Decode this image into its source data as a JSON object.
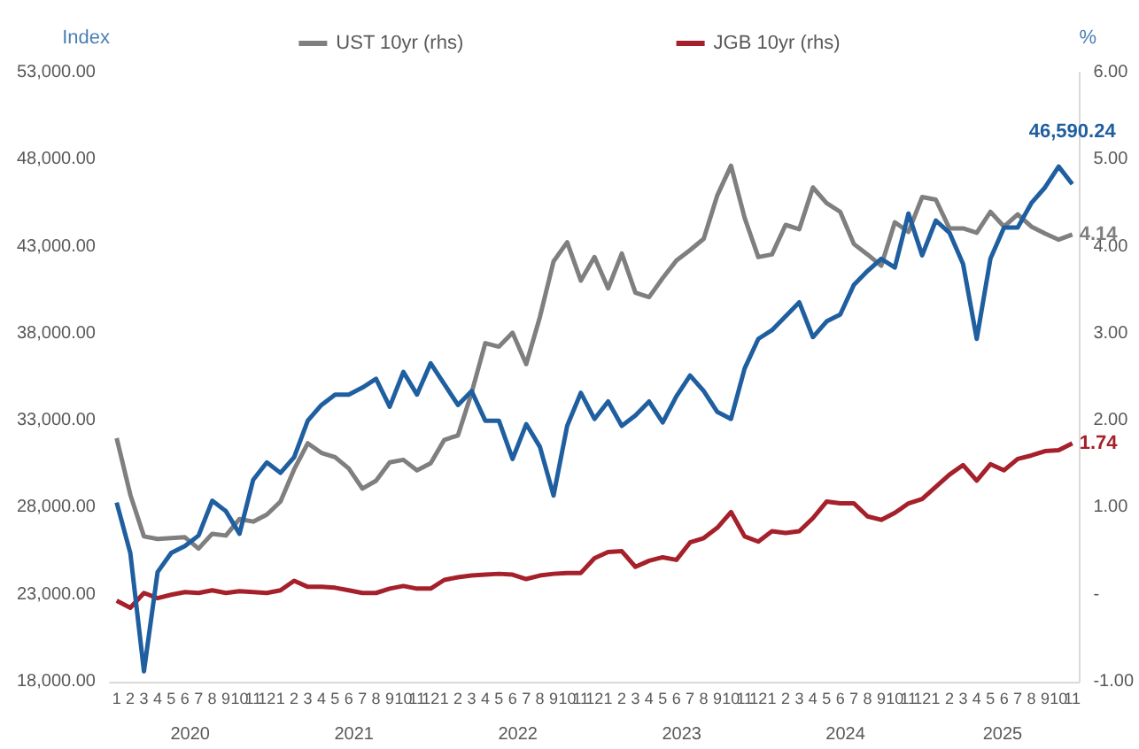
{
  "chart_data": {
    "type": "line",
    "ylabel": "Index",
    "y2label": "%",
    "categories": [
      "1",
      "2",
      "3",
      "4",
      "5",
      "6",
      "7",
      "8",
      "9",
      "10",
      "11",
      "12",
      "1",
      "2",
      "3",
      "4",
      "5",
      "6",
      "7",
      "8",
      "9",
      "10",
      "11",
      "12",
      "1",
      "2",
      "3",
      "4",
      "5",
      "6",
      "7",
      "8",
      "9",
      "10",
      "11",
      "12",
      "1",
      "2",
      "3",
      "4",
      "5",
      "6",
      "7",
      "8",
      "9",
      "10",
      "11",
      "12",
      "1",
      "2",
      "3",
      "4",
      "5",
      "6",
      "7",
      "8",
      "9",
      "10",
      "11",
      "12",
      "1",
      "2",
      "3",
      "4",
      "5",
      "6",
      "7",
      "8",
      "9",
      "10",
      "11"
    ],
    "annotations": [
      "2020",
      "2021",
      "2022",
      "2023",
      "2024",
      "2025"
    ],
    "series": [
      {
        "color": "#1f5fa0",
        "values": [
          28300,
          25400,
          18600,
          24300,
          25400,
          25800,
          26400,
          28400,
          27800,
          26500,
          29600,
          30600,
          30000,
          30900,
          33000,
          33900,
          34500,
          34500,
          34900,
          35400,
          33800,
          35800,
          34500,
          36300,
          35100,
          33900,
          34700,
          33000,
          33000,
          30800,
          32800,
          31500,
          28700,
          32700,
          34600,
          33100,
          34100,
          32700,
          33300,
          34100,
          32900,
          34400,
          35600,
          34700,
          33500,
          33100,
          36000,
          37700,
          38200,
          39000,
          39800,
          37800,
          38700,
          39100,
          40800,
          41600,
          42300,
          41800,
          44900,
          42500,
          44500,
          43800,
          42000,
          37700,
          42300,
          44100,
          44100,
          45500,
          46400,
          47600,
          46590.24
        ],
        "value_labels": [
          null,
          null,
          null,
          null,
          null,
          null,
          null,
          null,
          null,
          null,
          null,
          null,
          null,
          null,
          null,
          null,
          null,
          null,
          null,
          null,
          null,
          null,
          null,
          null,
          null,
          null,
          null,
          null,
          null,
          null,
          null,
          null,
          null,
          null,
          null,
          null,
          null,
          null,
          null,
          null,
          null,
          null,
          null,
          null,
          null,
          null,
          null,
          null,
          null,
          null,
          null,
          null,
          null,
          null,
          null,
          null,
          null,
          null,
          null,
          null,
          null,
          null,
          null,
          null,
          null,
          null,
          null,
          null,
          null,
          null,
          "46,590.24"
        ]
      },
      {
        "name": "UST 10yr (rhs)",
        "color": "#7f7f7f",
        "axis": "y2",
        "values": [
          1.8,
          1.15,
          0.67,
          0.64,
          0.65,
          0.66,
          0.53,
          0.7,
          0.68,
          0.87,
          0.84,
          0.92,
          1.07,
          1.44,
          1.74,
          1.63,
          1.58,
          1.45,
          1.22,
          1.31,
          1.52,
          1.55,
          1.43,
          1.51,
          1.78,
          1.83,
          2.32,
          2.89,
          2.85,
          3.01,
          2.65,
          3.19,
          3.83,
          4.05,
          3.61,
          3.88,
          3.52,
          3.92,
          3.47,
          3.42,
          3.64,
          3.84,
          3.96,
          4.09,
          4.59,
          4.93,
          4.33,
          3.88,
          3.91,
          4.25,
          4.2,
          4.68,
          4.5,
          4.4,
          4.03,
          3.91,
          3.78,
          4.28,
          4.17,
          4.57,
          4.54,
          4.21,
          4.21,
          4.16,
          4.4,
          4.23,
          4.37,
          4.23,
          4.15,
          4.08,
          4.14
        ],
        "value_labels": [
          null,
          null,
          null,
          null,
          null,
          null,
          null,
          null,
          null,
          null,
          null,
          null,
          null,
          null,
          null,
          null,
          null,
          null,
          null,
          null,
          null,
          null,
          null,
          null,
          null,
          null,
          null,
          null,
          null,
          null,
          null,
          null,
          null,
          null,
          null,
          null,
          null,
          null,
          null,
          null,
          null,
          null,
          null,
          null,
          null,
          null,
          null,
          null,
          null,
          null,
          null,
          null,
          null,
          null,
          null,
          null,
          null,
          null,
          null,
          null,
          null,
          null,
          null,
          null,
          null,
          null,
          null,
          null,
          null,
          null,
          "4.14"
        ]
      },
      {
        "name": "JGB 10yr (rhs)",
        "color": "#a5202a",
        "axis": "y2",
        "values": [
          -0.07,
          -0.15,
          0.02,
          -0.04,
          0.0,
          0.03,
          0.02,
          0.05,
          0.02,
          0.04,
          0.03,
          0.02,
          0.05,
          0.16,
          0.09,
          0.09,
          0.08,
          0.05,
          0.02,
          0.02,
          0.07,
          0.1,
          0.07,
          0.07,
          0.17,
          0.2,
          0.22,
          0.23,
          0.24,
          0.23,
          0.18,
          0.22,
          0.24,
          0.25,
          0.25,
          0.42,
          0.49,
          0.5,
          0.32,
          0.39,
          0.43,
          0.4,
          0.6,
          0.65,
          0.77,
          0.95,
          0.67,
          0.61,
          0.73,
          0.71,
          0.73,
          0.88,
          1.07,
          1.05,
          1.05,
          0.9,
          0.86,
          0.94,
          1.05,
          1.1,
          1.24,
          1.38,
          1.49,
          1.31,
          1.5,
          1.43,
          1.56,
          1.6,
          1.65,
          1.66,
          1.74
        ],
        "value_labels": [
          null,
          null,
          null,
          null,
          null,
          null,
          null,
          null,
          null,
          null,
          null,
          null,
          null,
          null,
          null,
          null,
          null,
          null,
          null,
          null,
          null,
          null,
          null,
          null,
          null,
          null,
          null,
          null,
          null,
          null,
          null,
          null,
          null,
          null,
          null,
          null,
          null,
          null,
          null,
          null,
          null,
          null,
          null,
          null,
          null,
          null,
          null,
          null,
          null,
          null,
          null,
          null,
          null,
          null,
          null,
          null,
          null,
          null,
          null,
          null,
          null,
          null,
          null,
          null,
          null,
          null,
          null,
          null,
          null,
          null,
          "1.74"
        ]
      }
    ],
    "ylim": [
      18000,
      53000
    ],
    "yticks": [
      {
        "value": 18000,
        "label": "18,000.00"
      },
      {
        "value": 23000,
        "label": "23,000.00"
      },
      {
        "value": 28000,
        "label": "28,000.00"
      },
      {
        "value": 33000,
        "label": "33,000.00"
      },
      {
        "value": 38000,
        "label": "38,000.00"
      },
      {
        "value": 43000,
        "label": "43,000.00"
      },
      {
        "value": 48000,
        "label": "48,000.00"
      },
      {
        "value": 53000,
        "label": "53,000.00"
      }
    ],
    "y2lim": [
      -1,
      6
    ],
    "y2ticks": [
      {
        "value": -1,
        "label": "-1.00"
      },
      {
        "value": 0,
        "label": "-"
      },
      {
        "value": 1,
        "label": "1.00"
      },
      {
        "value": 2,
        "label": "2.00"
      },
      {
        "value": 3,
        "label": "3.00"
      },
      {
        "value": 4,
        "label": "4.00"
      },
      {
        "value": 5,
        "label": "5.00"
      },
      {
        "value": 6,
        "label": "6.00"
      }
    ],
    "legend": "top",
    "marker": "none",
    "grid": false
  }
}
